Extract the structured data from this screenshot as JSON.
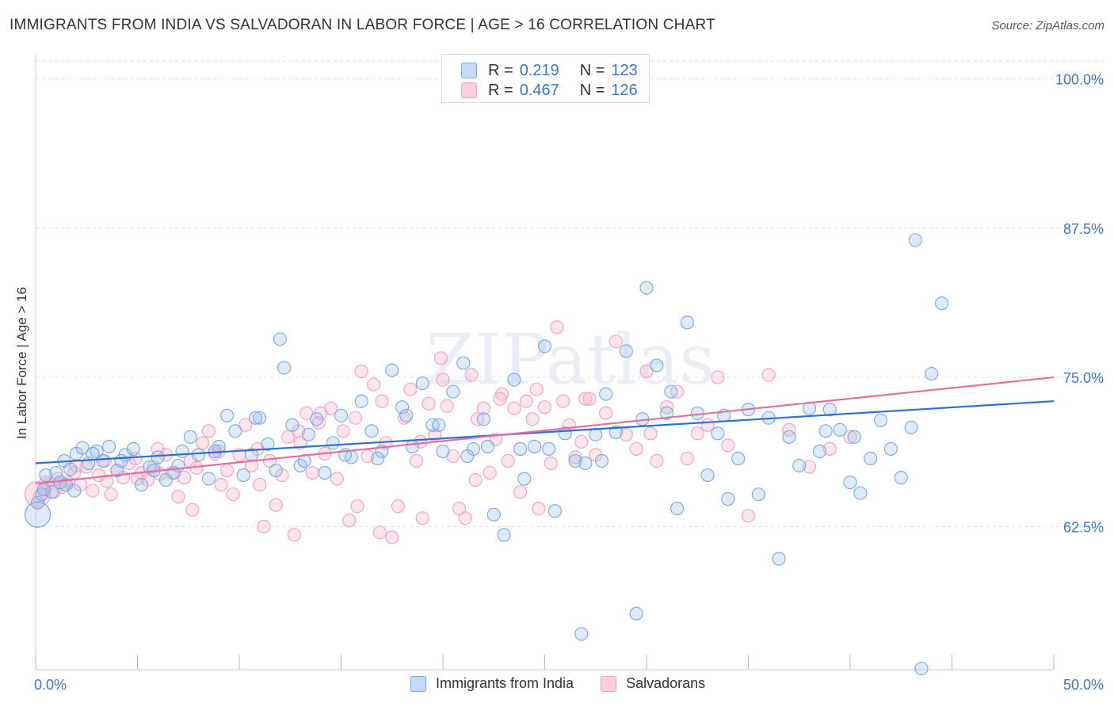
{
  "header": {
    "title": "IMMIGRANTS FROM INDIA VS SALVADORAN IN LABOR FORCE | AGE > 16 CORRELATION CHART",
    "source": "Source: ZipAtlas.com"
  },
  "watermark": "ZIPatlas",
  "legend": {
    "rows": [
      {
        "r_label": "R =",
        "r_value": "0.219",
        "n_label": "N =",
        "n_value": "123"
      },
      {
        "r_label": "R =",
        "r_value": "0.467",
        "n_label": "N =",
        "n_value": "126"
      }
    ]
  },
  "bottom_legend": {
    "india": "Immigrants from India",
    "salvadorans": "Salvadorans"
  },
  "chart_data": {
    "type": "scatter",
    "title": "IMMIGRANTS FROM INDIA VS SALVADORAN IN LABOR FORCE | AGE > 16 CORRELATION CHART",
    "xlabel": "",
    "ylabel": "In Labor Force | Age > 16",
    "xlim": [
      0,
      50
    ],
    "ylim": [
      50.5,
      101.5
    ],
    "x_tick_labels": [
      "0.0%",
      "50.0%"
    ],
    "y_ticks": [
      62.5,
      75.0,
      87.5,
      100.0
    ],
    "y_tick_labels": [
      "62.5%",
      "75.0%",
      "87.5%",
      "100.0%"
    ],
    "grid": true,
    "legend_position": "top-center",
    "series": [
      {
        "name": "Immigrants from India",
        "color": "#7aa7e0",
        "trend_color": "#2f6fd0",
        "r": 0.219,
        "n": 123,
        "trend": [
          [
            0,
            67.8
          ],
          [
            50,
            73.0
          ]
        ],
        "points": [
          [
            0.1,
            64.5
          ],
          [
            0.3,
            65.2
          ],
          [
            0.5,
            66.8
          ],
          [
            0.8,
            65.4
          ],
          [
            1.0,
            67.0
          ],
          [
            1.2,
            66.2
          ],
          [
            1.4,
            68.0
          ],
          [
            1.7,
            67.3
          ],
          [
            2.0,
            68.6
          ],
          [
            2.3,
            69.1
          ],
          [
            2.6,
            67.8
          ],
          [
            3.0,
            68.8
          ],
          [
            3.3,
            68.0
          ],
          [
            3.6,
            69.2
          ],
          [
            4.0,
            67.2
          ],
          [
            4.4,
            68.5
          ],
          [
            4.8,
            69.0
          ],
          [
            5.2,
            66.0
          ],
          [
            5.6,
            67.5
          ],
          [
            6.0,
            68.3
          ],
          [
            6.4,
            66.4
          ],
          [
            6.8,
            67.0
          ],
          [
            7.2,
            68.8
          ],
          [
            7.6,
            70.0
          ],
          [
            8.0,
            68.5
          ],
          [
            8.5,
            66.5
          ],
          [
            9.0,
            69.2
          ],
          [
            9.4,
            71.8
          ],
          [
            9.8,
            70.5
          ],
          [
            10.2,
            66.8
          ],
          [
            10.6,
            68.5
          ],
          [
            11.0,
            71.6
          ],
          [
            11.4,
            69.4
          ],
          [
            11.8,
            67.2
          ],
          [
            12.2,
            75.8
          ],
          [
            12.6,
            71.0
          ],
          [
            13.0,
            67.6
          ],
          [
            13.4,
            70.2
          ],
          [
            13.8,
            71.5
          ],
          [
            14.2,
            67.0
          ],
          [
            14.6,
            69.5
          ],
          [
            15.0,
            71.8
          ],
          [
            15.5,
            68.3
          ],
          [
            16.0,
            73.0
          ],
          [
            16.5,
            70.5
          ],
          [
            17.0,
            68.8
          ],
          [
            17.5,
            75.6
          ],
          [
            18.0,
            72.5
          ],
          [
            18.5,
            69.2
          ],
          [
            19.0,
            74.5
          ],
          [
            19.5,
            71.0
          ],
          [
            20.0,
            68.8
          ],
          [
            20.5,
            73.8
          ],
          [
            21.0,
            76.2
          ],
          [
            21.5,
            69.0
          ],
          [
            22.0,
            71.5
          ],
          [
            22.5,
            63.5
          ],
          [
            23.0,
            61.8
          ],
          [
            23.5,
            74.8
          ],
          [
            24.0,
            66.5
          ],
          [
            24.5,
            69.2
          ],
          [
            25.0,
            77.6
          ],
          [
            25.5,
            63.8
          ],
          [
            26.0,
            70.3
          ],
          [
            26.5,
            68.0
          ],
          [
            27.0,
            67.8
          ],
          [
            27.5,
            70.2
          ],
          [
            28.0,
            73.6
          ],
          [
            28.5,
            70.4
          ],
          [
            29.0,
            77.2
          ],
          [
            29.5,
            55.2
          ],
          [
            30.0,
            82.5
          ],
          [
            30.5,
            76.0
          ],
          [
            31.0,
            72.0
          ],
          [
            31.5,
            64.0
          ],
          [
            32.0,
            79.6
          ],
          [
            32.5,
            72.0
          ],
          [
            33.0,
            66.8
          ],
          [
            33.5,
            70.3
          ],
          [
            34.0,
            64.8
          ],
          [
            34.5,
            68.2
          ],
          [
            35.0,
            72.3
          ],
          [
            35.5,
            65.2
          ],
          [
            36.0,
            71.6
          ],
          [
            36.5,
            59.8
          ],
          [
            37.0,
            70.0
          ],
          [
            37.5,
            67.6
          ],
          [
            38.0,
            72.4
          ],
          [
            38.5,
            68.8
          ],
          [
            39.0,
            72.3
          ],
          [
            39.5,
            70.6
          ],
          [
            40.0,
            66.2
          ],
          [
            40.5,
            65.3
          ],
          [
            41.0,
            68.2
          ],
          [
            41.5,
            71.4
          ],
          [
            42.0,
            69.0
          ],
          [
            42.5,
            66.6
          ],
          [
            43.0,
            70.8
          ],
          [
            43.5,
            50.6
          ],
          [
            44.0,
            75.3
          ],
          [
            44.5,
            81.2
          ],
          [
            1.5,
            66.0
          ],
          [
            2.8,
            68.6
          ],
          [
            4.2,
            68.0
          ],
          [
            5.8,
            67.2
          ],
          [
            7.0,
            67.6
          ],
          [
            8.8,
            68.8
          ],
          [
            10.8,
            71.6
          ],
          [
            12.0,
            78.2
          ],
          [
            13.2,
            68.0
          ],
          [
            15.2,
            68.5
          ],
          [
            16.8,
            68.2
          ],
          [
            18.2,
            71.8
          ],
          [
            19.8,
            71.0
          ],
          [
            21.2,
            68.4
          ],
          [
            22.2,
            69.2
          ],
          [
            23.8,
            69.0
          ],
          [
            25.2,
            69.0
          ],
          [
            26.8,
            53.5
          ],
          [
            27.8,
            68.0
          ],
          [
            29.8,
            71.5
          ],
          [
            31.2,
            73.8
          ],
          [
            33.8,
            71.8
          ],
          [
            38.8,
            70.5
          ],
          [
            40.2,
            70.0
          ],
          [
            43.2,
            86.5
          ],
          [
            0.4,
            65.6
          ],
          [
            1.9,
            65.5
          ]
        ],
        "large_points": [
          [
            0.1,
            63.5
          ]
        ]
      },
      {
        "name": "Salvadorans",
        "color": "#f4a0bb",
        "trend_color": "#e0709a",
        "r": 0.467,
        "n": 126,
        "trend": [
          [
            0,
            66.1
          ],
          [
            50,
            75.0
          ]
        ],
        "points": [
          [
            0.2,
            65.0
          ],
          [
            0.4,
            65.6
          ],
          [
            0.6,
            66.0
          ],
          [
            0.9,
            65.4
          ],
          [
            1.1,
            66.5
          ],
          [
            1.3,
            65.8
          ],
          [
            1.6,
            66.2
          ],
          [
            1.9,
            67.0
          ],
          [
            2.2,
            66.0
          ],
          [
            2.5,
            67.5
          ],
          [
            2.8,
            65.5
          ],
          [
            3.1,
            66.8
          ],
          [
            3.4,
            68.0
          ],
          [
            3.7,
            65.2
          ],
          [
            4.0,
            67.2
          ],
          [
            4.3,
            66.6
          ],
          [
            4.6,
            67.8
          ],
          [
            4.9,
            68.2
          ],
          [
            5.2,
            67.0
          ],
          [
            5.5,
            66.4
          ],
          [
            5.8,
            67.5
          ],
          [
            6.1,
            66.9
          ],
          [
            6.4,
            68.5
          ],
          [
            6.7,
            67.0
          ],
          [
            7.0,
            65.0
          ],
          [
            7.3,
            66.6
          ],
          [
            7.6,
            68.0
          ],
          [
            7.9,
            67.4
          ],
          [
            8.2,
            69.5
          ],
          [
            8.5,
            70.5
          ],
          [
            8.8,
            68.6
          ],
          [
            9.1,
            66.0
          ],
          [
            9.4,
            67.2
          ],
          [
            9.7,
            65.2
          ],
          [
            10.0,
            68.5
          ],
          [
            10.3,
            71.0
          ],
          [
            10.6,
            67.6
          ],
          [
            10.9,
            69.0
          ],
          [
            11.2,
            62.5
          ],
          [
            11.5,
            68.0
          ],
          [
            11.8,
            64.3
          ],
          [
            12.1,
            66.8
          ],
          [
            12.4,
            70.0
          ],
          [
            12.7,
            61.8
          ],
          [
            13.0,
            69.5
          ],
          [
            13.3,
            72.0
          ],
          [
            13.6,
            67.0
          ],
          [
            13.9,
            71.2
          ],
          [
            14.2,
            68.6
          ],
          [
            14.5,
            72.4
          ],
          [
            14.8,
            66.5
          ],
          [
            15.1,
            70.5
          ],
          [
            15.4,
            63.0
          ],
          [
            15.7,
            71.6
          ],
          [
            16.0,
            75.5
          ],
          [
            16.3,
            68.4
          ],
          [
            16.6,
            74.4
          ],
          [
            16.9,
            62.0
          ],
          [
            17.2,
            69.5
          ],
          [
            17.5,
            61.6
          ],
          [
            17.8,
            64.2
          ],
          [
            18.1,
            71.6
          ],
          [
            18.4,
            74.0
          ],
          [
            18.7,
            68.0
          ],
          [
            19.0,
            63.2
          ],
          [
            19.3,
            72.8
          ],
          [
            19.6,
            70.2
          ],
          [
            19.9,
            76.6
          ],
          [
            20.2,
            72.6
          ],
          [
            20.5,
            68.4
          ],
          [
            20.8,
            64.0
          ],
          [
            21.1,
            63.2
          ],
          [
            21.4,
            75.2
          ],
          [
            21.7,
            71.5
          ],
          [
            22.0,
            72.4
          ],
          [
            22.3,
            67.0
          ],
          [
            22.6,
            69.8
          ],
          [
            22.9,
            73.6
          ],
          [
            23.2,
            68.0
          ],
          [
            23.5,
            72.4
          ],
          [
            23.8,
            65.4
          ],
          [
            24.1,
            73.0
          ],
          [
            24.4,
            71.5
          ],
          [
            24.7,
            64.0
          ],
          [
            25.0,
            72.5
          ],
          [
            25.3,
            67.8
          ],
          [
            25.6,
            79.2
          ],
          [
            25.9,
            73.0
          ],
          [
            26.2,
            71.0
          ],
          [
            26.5,
            68.3
          ],
          [
            26.8,
            69.6
          ],
          [
            27.0,
            73.2
          ],
          [
            27.5,
            68.5
          ],
          [
            28.0,
            72.0
          ],
          [
            28.5,
            78.0
          ],
          [
            29.0,
            70.2
          ],
          [
            29.5,
            69.0
          ],
          [
            30.0,
            75.5
          ],
          [
            30.5,
            68.0
          ],
          [
            31.0,
            72.5
          ],
          [
            31.5,
            73.8
          ],
          [
            32.0,
            68.2
          ],
          [
            32.5,
            70.3
          ],
          [
            33.0,
            71.0
          ],
          [
            33.5,
            75.0
          ],
          [
            34.0,
            69.3
          ],
          [
            35.0,
            63.4
          ],
          [
            36.0,
            75.2
          ],
          [
            37.0,
            70.6
          ],
          [
            38.0,
            67.5
          ],
          [
            39.0,
            69.0
          ],
          [
            40.0,
            70.0
          ],
          [
            0.5,
            66.2
          ],
          [
            1.4,
            66.0
          ],
          [
            2.0,
            67.6
          ],
          [
            3.5,
            66.3
          ],
          [
            5.0,
            66.5
          ],
          [
            6.0,
            69.0
          ],
          [
            7.7,
            63.9
          ],
          [
            9.0,
            68.8
          ],
          [
            11.0,
            66.0
          ],
          [
            12.9,
            70.5
          ],
          [
            14.0,
            72.0
          ],
          [
            15.8,
            64.2
          ],
          [
            17.0,
            73.0
          ],
          [
            18.9,
            69.6
          ],
          [
            20.0,
            74.8
          ],
          [
            21.6,
            66.4
          ],
          [
            22.8,
            73.2
          ],
          [
            24.6,
            74.0
          ],
          [
            27.2,
            73.2
          ],
          [
            30.2,
            70.3
          ]
        ],
        "large_points": [
          [
            0.1,
            65.2
          ]
        ]
      }
    ]
  }
}
